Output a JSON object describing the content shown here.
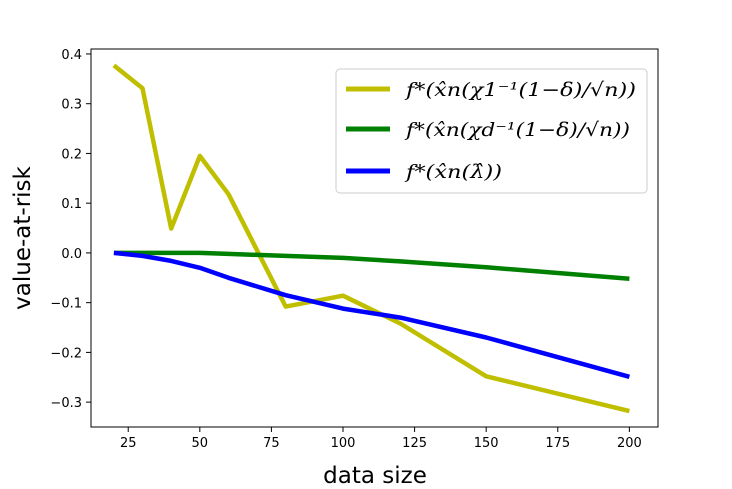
{
  "chart_data": {
    "type": "line",
    "title": "",
    "xlabel": "data size",
    "ylabel": "value-at-risk",
    "xlim": [
      12,
      210
    ],
    "ylim": [
      -0.35,
      0.41
    ],
    "xticks": [
      25,
      50,
      75,
      100,
      125,
      150,
      175,
      200
    ],
    "yticks": [
      -0.3,
      -0.2,
      -0.1,
      0.0,
      0.1,
      0.2,
      0.3,
      0.4
    ],
    "xtick_labels": [
      "25",
      "50",
      "75",
      "100",
      "125",
      "150",
      "175",
      "200"
    ],
    "ytick_labels": [
      "−0.3",
      "−0.2",
      "−0.1",
      "0.0",
      "0.1",
      "0.2",
      "0.3",
      "0.4"
    ],
    "grid": false,
    "legend_position": "top-right",
    "series": [
      {
        "name": "f*(x̂n(χ1⁻¹(1−δ)/√n))",
        "color": "#bfbf00",
        "x": [
          20,
          30,
          40,
          50,
          60,
          80,
          100,
          120,
          150,
          200
        ],
        "y": [
          0.377,
          0.331,
          0.049,
          0.195,
          0.118,
          -0.108,
          -0.086,
          -0.142,
          -0.248,
          -0.318
        ]
      },
      {
        "name": "f*(x̂n(χd⁻¹(1−δ)/√n))",
        "color": "#008000",
        "x": [
          20,
          30,
          40,
          50,
          60,
          80,
          100,
          120,
          150,
          200
        ],
        "y": [
          0.0,
          0.0,
          0.0,
          0.0,
          -0.002,
          -0.006,
          -0.01,
          -0.017,
          -0.029,
          -0.052
        ]
      },
      {
        "name": "f*(x̂n(λ̂))",
        "color": "#0000ff",
        "x": [
          20,
          30,
          40,
          50,
          60,
          80,
          100,
          120,
          150,
          200
        ],
        "y": [
          0.0,
          -0.006,
          -0.016,
          -0.03,
          -0.05,
          -0.085,
          -0.112,
          -0.13,
          -0.17,
          -0.249
        ]
      }
    ]
  }
}
